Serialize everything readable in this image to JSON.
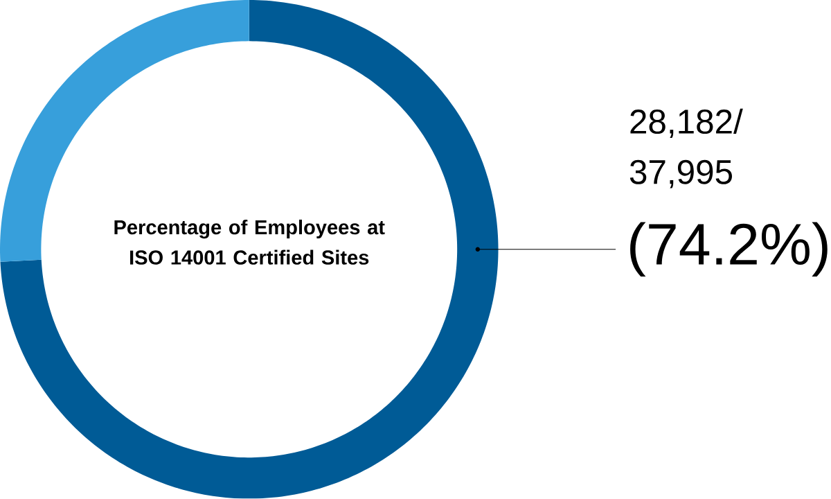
{
  "chart_data": {
    "type": "donut",
    "title": "Percentage of Employees at ISO 14001 Certified Sites",
    "categories": [
      null,
      null
    ],
    "values": [
      74.2,
      25.8
    ],
    "colors": [
      "#005b96",
      "#379fdb"
    ],
    "value_labels": [
      "(74.2%)",
      null
    ],
    "annotations": [
      "28,182/ 37,995"
    ]
  }
}
